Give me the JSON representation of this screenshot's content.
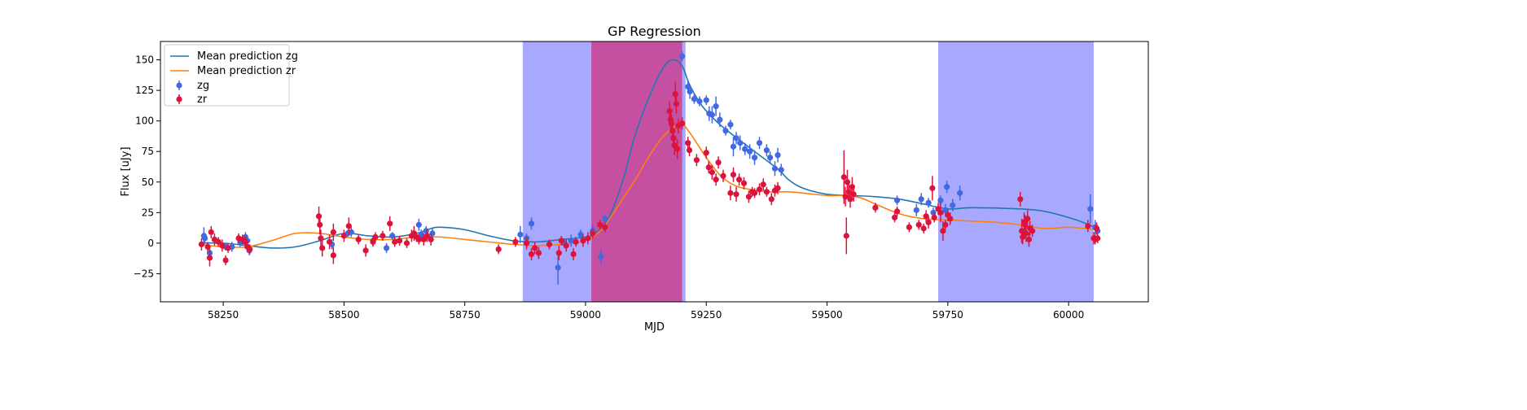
{
  "chart_data": {
    "type": "scatter",
    "title": "GP Regression",
    "xlabel": "MJD",
    "ylabel": "Flux [uJy]",
    "xlim": [
      58120,
      60165
    ],
    "ylim": [
      -48,
      165
    ],
    "xticks": [
      58250,
      58500,
      58750,
      59000,
      59250,
      59500,
      59750,
      60000
    ],
    "yticks": [
      -25,
      0,
      25,
      50,
      75,
      100,
      125,
      150
    ],
    "grid": false,
    "legend_position": "top-left",
    "colors": {
      "zg_points": "#4169e1",
      "zr_points": "#dc143c",
      "mean_zg": "#1f77b4",
      "mean_zr": "#ff7f0e",
      "span_blue": "#0000ff",
      "span_magenta": "#c8004a"
    },
    "shaded_spans": [
      {
        "x0": 58870,
        "x1": 59012,
        "color": "#0000ff",
        "alpha": 0.34
      },
      {
        "x0": 59012,
        "x1": 59207,
        "color": "#0000ff",
        "alpha": 0.34
      },
      {
        "x0": 59012,
        "x1": 59200,
        "color": "#e0004a",
        "alpha": 0.52
      },
      {
        "x0": 59730,
        "x1": 60052,
        "color": "#0000ff",
        "alpha": 0.34
      }
    ],
    "lines": [
      {
        "name": "Mean prediction zg",
        "color": "#1f77b4",
        "x": [
          58200,
          58250,
          58300,
          58350,
          58400,
          58450,
          58500,
          58550,
          58600,
          58650,
          58680,
          58700,
          58750,
          58800,
          58850,
          58900,
          58950,
          59000,
          59020,
          59050,
          59080,
          59100,
          59130,
          59160,
          59180,
          59200,
          59215,
          59240,
          59270,
          59300,
          59350,
          59400,
          59420,
          59450,
          59500,
          59550,
          59600,
          59650,
          59700,
          59750,
          59800,
          59900,
          59950,
          60000,
          60030,
          60060
        ],
        "y": [
          0,
          0,
          -2,
          -4,
          -3,
          2,
          8,
          6,
          5,
          8,
          12,
          13,
          11,
          6,
          2,
          1,
          3,
          5,
          8,
          22,
          55,
          85,
          118,
          143,
          150,
          145,
          130,
          113,
          100,
          90,
          75,
          60,
          52,
          45,
          40,
          39,
          38,
          36,
          32,
          28,
          29,
          28,
          26,
          21,
          17,
          12
        ]
      },
      {
        "name": "Mean prediction zr",
        "color": "#ff7f0e",
        "x": [
          58200,
          58250,
          58300,
          58350,
          58400,
          58450,
          58500,
          58550,
          58600,
          58650,
          58700,
          58750,
          58800,
          58850,
          58900,
          58950,
          59000,
          59030,
          59050,
          59080,
          59100,
          59130,
          59160,
          59190,
          59200,
          59220,
          59250,
          59280,
          59310,
          59340,
          59380,
          59420,
          59450,
          59500,
          59540,
          59570,
          59600,
          59650,
          59700,
          59750,
          59800,
          59850,
          59900,
          59950,
          60000,
          60060
        ],
        "y": [
          -1,
          -3,
          -3,
          2,
          8,
          8,
          5,
          3,
          3,
          5,
          5,
          3,
          1,
          -1,
          -2,
          -1,
          2,
          10,
          20,
          38,
          50,
          70,
          87,
          97,
          98,
          88,
          70,
          55,
          47,
          44,
          42,
          42,
          41,
          39,
          39,
          37,
          32,
          24,
          20,
          19,
          18,
          17,
          15,
          12,
          13,
          11
        ]
      }
    ],
    "series": [
      {
        "name": "zg",
        "color": "#4169e1",
        "points": [
          [
            58210,
            6,
            7
          ],
          [
            58212,
            4,
            4
          ],
          [
            58222,
            -8,
            4
          ],
          [
            58255,
            -3,
            3
          ],
          [
            58268,
            -3,
            4
          ],
          [
            58285,
            1,
            4
          ],
          [
            58296,
            5,
            4
          ],
          [
            58300,
            2,
            4
          ],
          [
            58304,
            -6,
            4
          ],
          [
            58475,
            -1,
            4
          ],
          [
            58508,
            8,
            3
          ],
          [
            58515,
            9,
            4
          ],
          [
            58560,
            2,
            4
          ],
          [
            58588,
            -4,
            4
          ],
          [
            58600,
            6,
            3
          ],
          [
            58655,
            15,
            5
          ],
          [
            58660,
            7,
            4
          ],
          [
            58670,
            10,
            4
          ],
          [
            58683,
            8,
            4
          ],
          [
            58865,
            7,
            7
          ],
          [
            58878,
            4,
            4
          ],
          [
            58888,
            16,
            5
          ],
          [
            58943,
            -20,
            14
          ],
          [
            58956,
            0,
            4
          ],
          [
            58970,
            2,
            5
          ],
          [
            58990,
            7,
            4
          ],
          [
            59015,
            10,
            5
          ],
          [
            59032,
            -11,
            6
          ],
          [
            59040,
            20,
            4
          ],
          [
            59200,
            153,
            4
          ],
          [
            59212,
            128,
            5
          ],
          [
            59216,
            124,
            6
          ],
          [
            59225,
            118,
            4
          ],
          [
            59236,
            116,
            4
          ],
          [
            59250,
            117,
            4
          ],
          [
            59256,
            106,
            6
          ],
          [
            59262,
            105,
            7
          ],
          [
            59270,
            112,
            8
          ],
          [
            59278,
            101,
            6
          ],
          [
            59290,
            92,
            4
          ],
          [
            59300,
            97,
            4
          ],
          [
            59306,
            79,
            8
          ],
          [
            59312,
            86,
            5
          ],
          [
            59320,
            82,
            6
          ],
          [
            59330,
            77,
            5
          ],
          [
            59340,
            75,
            6
          ],
          [
            59350,
            70,
            6
          ],
          [
            59360,
            82,
            5
          ],
          [
            59375,
            76,
            5
          ],
          [
            59382,
            70,
            5
          ],
          [
            59392,
            61,
            6
          ],
          [
            59398,
            72,
            6
          ],
          [
            59405,
            60,
            5
          ],
          [
            59645,
            35,
            4
          ],
          [
            59685,
            27,
            5
          ],
          [
            59695,
            36,
            5
          ],
          [
            59710,
            33,
            4
          ],
          [
            59720,
            25,
            4
          ],
          [
            59735,
            35,
            4
          ],
          [
            59745,
            27,
            5
          ],
          [
            59748,
            46,
            5
          ],
          [
            59760,
            31,
            5
          ],
          [
            59775,
            41,
            6
          ],
          [
            60045,
            28,
            12
          ],
          [
            60055,
            13,
            6
          ],
          [
            60060,
            10,
            5
          ]
        ]
      },
      {
        "name": "zr",
        "color": "#dc143c",
        "points": [
          [
            58205,
            -1,
            5
          ],
          [
            58218,
            -3,
            4
          ],
          [
            58222,
            -12,
            7
          ],
          [
            58225,
            9,
            5
          ],
          [
            58232,
            3,
            5
          ],
          [
            58240,
            1,
            4
          ],
          [
            58248,
            -2,
            5
          ],
          [
            58255,
            -14,
            4
          ],
          [
            58260,
            -4,
            4
          ],
          [
            58282,
            4,
            4
          ],
          [
            58290,
            3,
            4
          ],
          [
            58296,
            1,
            5
          ],
          [
            58300,
            -3,
            4
          ],
          [
            58305,
            -5,
            4
          ],
          [
            58448,
            22,
            8
          ],
          [
            58450,
            15,
            8
          ],
          [
            58452,
            4,
            7
          ],
          [
            58455,
            -4,
            7
          ],
          [
            58470,
            1,
            6
          ],
          [
            58478,
            9,
            7
          ],
          [
            58478,
            -10,
            7
          ],
          [
            58500,
            6,
            5
          ],
          [
            58510,
            14,
            7
          ],
          [
            58530,
            3,
            4
          ],
          [
            58545,
            -6,
            5
          ],
          [
            58560,
            1,
            4
          ],
          [
            58565,
            5,
            4
          ],
          [
            58580,
            6,
            4
          ],
          [
            58595,
            16,
            6
          ],
          [
            58605,
            1,
            4
          ],
          [
            58615,
            2,
            4
          ],
          [
            58630,
            0,
            4
          ],
          [
            58640,
            6,
            5
          ],
          [
            58645,
            8,
            6
          ],
          [
            58650,
            5,
            4
          ],
          [
            58655,
            3,
            4
          ],
          [
            58665,
            3,
            5
          ],
          [
            58672,
            6,
            5
          ],
          [
            58680,
            3,
            5
          ],
          [
            58820,
            -5,
            4
          ],
          [
            58855,
            1,
            4
          ],
          [
            58878,
            0,
            5
          ],
          [
            58888,
            -9,
            5
          ],
          [
            58895,
            -4,
            5
          ],
          [
            58903,
            -8,
            5
          ],
          [
            58925,
            -1,
            4
          ],
          [
            58945,
            -8,
            6
          ],
          [
            58950,
            2,
            4
          ],
          [
            58960,
            -2,
            5
          ],
          [
            58975,
            -9,
            5
          ],
          [
            58980,
            1,
            4
          ],
          [
            58995,
            2,
            5
          ],
          [
            59005,
            4,
            5
          ],
          [
            59015,
            8,
            4
          ],
          [
            59030,
            15,
            4
          ],
          [
            59040,
            13,
            4
          ],
          [
            59174,
            108,
            8
          ],
          [
            59176,
            101,
            7
          ],
          [
            59178,
            98,
            7
          ],
          [
            59180,
            92,
            8
          ],
          [
            59182,
            86,
            8
          ],
          [
            59184,
            80,
            8
          ],
          [
            59186,
            122,
            10
          ],
          [
            59188,
            114,
            8
          ],
          [
            59190,
            77,
            8
          ],
          [
            59192,
            96,
            6
          ],
          [
            59200,
            98,
            5
          ],
          [
            59212,
            82,
            5
          ],
          [
            59215,
            76,
            5
          ],
          [
            59230,
            68,
            5
          ],
          [
            59250,
            74,
            5
          ],
          [
            59255,
            62,
            5
          ],
          [
            59262,
            58,
            6
          ],
          [
            59270,
            52,
            5
          ],
          [
            59275,
            66,
            5
          ],
          [
            59285,
            55,
            5
          ],
          [
            59300,
            41,
            6
          ],
          [
            59306,
            56,
            6
          ],
          [
            59312,
            40,
            6
          ],
          [
            59318,
            52,
            5
          ],
          [
            59328,
            49,
            5
          ],
          [
            59338,
            38,
            5
          ],
          [
            59345,
            42,
            4
          ],
          [
            59350,
            41,
            4
          ],
          [
            59360,
            44,
            5
          ],
          [
            59368,
            48,
            5
          ],
          [
            59375,
            42,
            4
          ],
          [
            59385,
            36,
            5
          ],
          [
            59392,
            43,
            5
          ],
          [
            59398,
            45,
            5
          ],
          [
            59535,
            54,
            22
          ],
          [
            59538,
            38,
            8
          ],
          [
            59540,
            6,
            15
          ],
          [
            59542,
            50,
            10
          ],
          [
            59545,
            42,
            8
          ],
          [
            59548,
            36,
            7
          ],
          [
            59552,
            46,
            8
          ],
          [
            59555,
            40,
            6
          ],
          [
            59600,
            29,
            4
          ],
          [
            59640,
            21,
            4
          ],
          [
            59645,
            26,
            4
          ],
          [
            59670,
            13,
            4
          ],
          [
            59690,
            15,
            4
          ],
          [
            59700,
            12,
            4
          ],
          [
            59705,
            22,
            5
          ],
          [
            59710,
            17,
            5
          ],
          [
            59718,
            45,
            10
          ],
          [
            59722,
            21,
            4
          ],
          [
            59730,
            28,
            5
          ],
          [
            59735,
            25,
            8
          ],
          [
            59740,
            10,
            8
          ],
          [
            59745,
            15,
            4
          ],
          [
            59750,
            23,
            5
          ],
          [
            59755,
            20,
            5
          ],
          [
            59900,
            36,
            6
          ],
          [
            59903,
            10,
            10
          ],
          [
            59905,
            5,
            6
          ],
          [
            59908,
            17,
            8
          ],
          [
            59910,
            15,
            8
          ],
          [
            59912,
            8,
            7
          ],
          [
            59915,
            20,
            7
          ],
          [
            59918,
            3,
            6
          ],
          [
            59920,
            12,
            6
          ],
          [
            59925,
            10,
            5
          ],
          [
            60040,
            14,
            5
          ],
          [
            60052,
            4,
            5
          ],
          [
            60055,
            3,
            4
          ],
          [
            60058,
            12,
            5
          ],
          [
            60060,
            4,
            4
          ]
        ]
      }
    ]
  }
}
